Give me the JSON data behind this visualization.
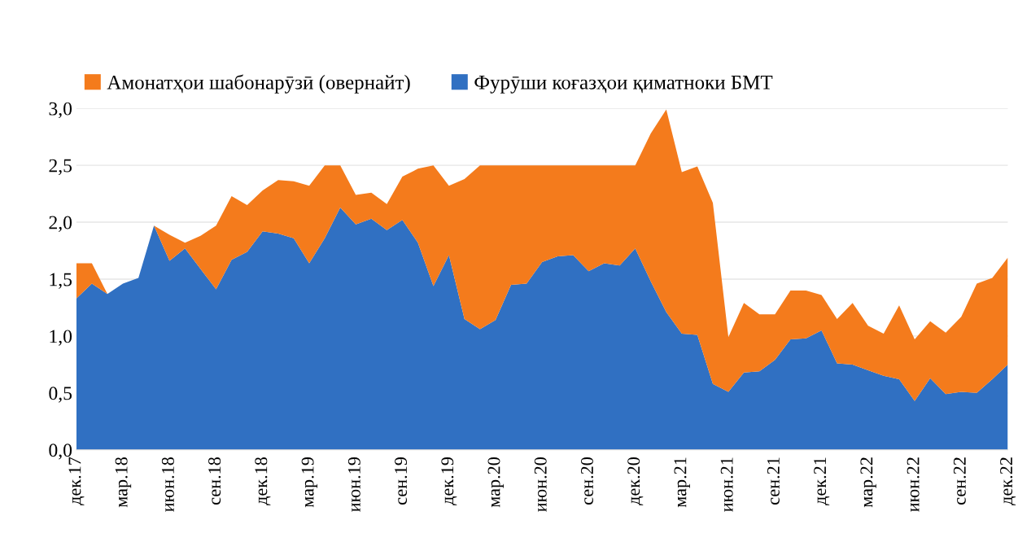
{
  "chart_data": {
    "type": "area",
    "stacked": true,
    "categories": [
      "дек.17",
      null,
      null,
      "мар.18",
      null,
      null,
      "июн.18",
      null,
      null,
      "сен.18",
      null,
      null,
      "дек.18",
      null,
      null,
      "мар.19",
      null,
      null,
      "июн.19",
      null,
      null,
      "сен.19",
      null,
      null,
      "дек.19",
      null,
      null,
      "мар.20",
      null,
      null,
      "июн.20",
      null,
      null,
      "сен.20",
      null,
      null,
      "дек.20",
      null,
      null,
      "мар.21",
      null,
      null,
      "июн.21",
      null,
      null,
      "сен.21",
      null,
      null,
      "дек.21",
      null,
      null,
      "мар.22",
      null,
      null,
      "июн.22",
      null,
      null,
      "сен.22",
      null,
      null,
      "дек.22"
    ],
    "series": [
      {
        "name": "Фурӯши коғазҳои қиматноки БМТ",
        "color": "#3070c2",
        "values": [
          1.33,
          1.46,
          1.37,
          1.46,
          1.51,
          1.97,
          1.66,
          1.77,
          1.59,
          1.41,
          1.67,
          1.74,
          1.92,
          1.9,
          1.86,
          1.64,
          1.86,
          2.13,
          1.98,
          2.03,
          1.93,
          2.02,
          1.82,
          1.44,
          1.71,
          1.15,
          1.06,
          1.14,
          1.45,
          1.46,
          1.65,
          1.7,
          1.71,
          1.57,
          1.64,
          1.62,
          1.77,
          1.48,
          1.21,
          1.02,
          1.01,
          0.58,
          0.51,
          0.68,
          0.69,
          0.79,
          0.97,
          0.98,
          1.05,
          0.76,
          0.75,
          0.7,
          0.65,
          0.62,
          0.43,
          0.63,
          0.49,
          0.51,
          0.5,
          0.62,
          0.75
        ]
      },
      {
        "name": "Амонатҳои шабонарӯзӣ (овернайт)",
        "color": "#f47b1c",
        "values": [
          0.31,
          0.18,
          0,
          0,
          0,
          0,
          0.23,
          0.05,
          0.29,
          0.56,
          0.56,
          0.41,
          0.36,
          0.47,
          0.5,
          0.68,
          0.64,
          0.37,
          0.26,
          0.23,
          0.23,
          0.38,
          0.65,
          1.06,
          0.61,
          1.23,
          1.44,
          1.36,
          1.05,
          1.04,
          0.85,
          0.8,
          0.79,
          0.93,
          0.86,
          0.88,
          0.73,
          1.3,
          1.78,
          1.42,
          1.48,
          1.59,
          0.48,
          0.61,
          0.5,
          0.4,
          0.43,
          0.42,
          0.31,
          0.39,
          0.54,
          0.39,
          0.37,
          0.65,
          0.54,
          0.5,
          0.54,
          0.66,
          0.96,
          0.89,
          0.94
        ]
      }
    ],
    "ylim": [
      0,
      3.0
    ],
    "yticks": [
      {
        "value": 0,
        "label": "0,0"
      },
      {
        "value": 0.5,
        "label": "0,5"
      },
      {
        "value": 1.0,
        "label": "1,0"
      },
      {
        "value": 1.5,
        "label": "1,5"
      },
      {
        "value": 2.0,
        "label": "2,0"
      },
      {
        "value": 2.5,
        "label": "2,5"
      },
      {
        "value": 3.0,
        "label": "3,0"
      }
    ],
    "grid": "y",
    "legend": "top left"
  }
}
